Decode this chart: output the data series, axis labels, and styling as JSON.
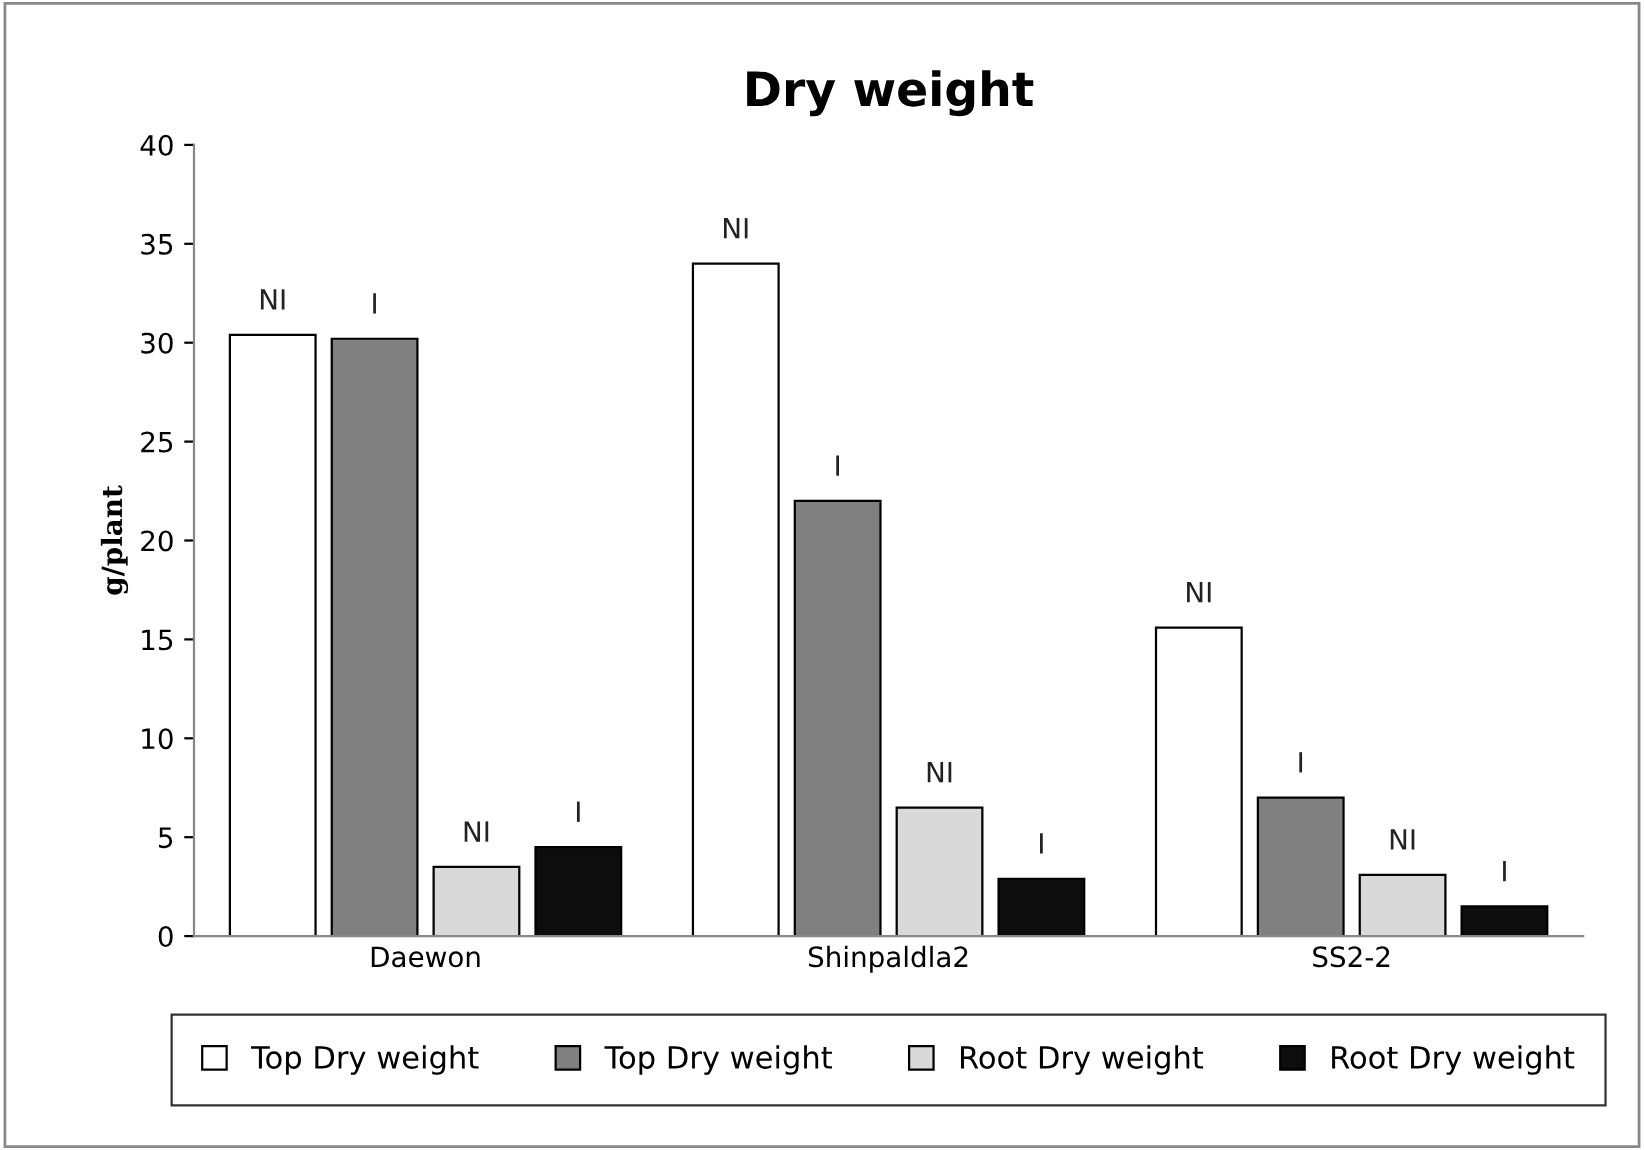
{
  "chart_data": {
    "type": "bar",
    "title": "Dry weight",
    "ylabel": "g/plant",
    "categories": [
      "Daewon",
      "Shinpaldla2",
      "SS2-2"
    ],
    "series": [
      {
        "name": "Top Dry weight",
        "color": "#ffffff",
        "values": [
          30.4,
          34.0,
          15.6
        ],
        "value_labels": [
          "NI",
          "NI",
          "NI"
        ]
      },
      {
        "name": "Top Dry weight",
        "color": "#808080",
        "values": [
          30.2,
          22.0,
          7.0
        ],
        "value_labels": [
          "I",
          "I",
          "I"
        ]
      },
      {
        "name": "Root Dry weight",
        "color": "#d9d9d9",
        "values": [
          3.5,
          6.5,
          3.1
        ],
        "value_labels": [
          "NI",
          "NI",
          "NI"
        ]
      },
      {
        "name": "Root Dry weight",
        "color": "#0d0d0d",
        "values": [
          4.5,
          2.9,
          1.5
        ],
        "value_labels": [
          "I",
          "I",
          "I"
        ]
      }
    ],
    "ylim": [
      0,
      40
    ],
    "yticks": [
      0,
      5,
      10,
      15,
      20,
      25,
      30,
      35,
      40
    ],
    "grid": false,
    "legend": "bottom"
  }
}
